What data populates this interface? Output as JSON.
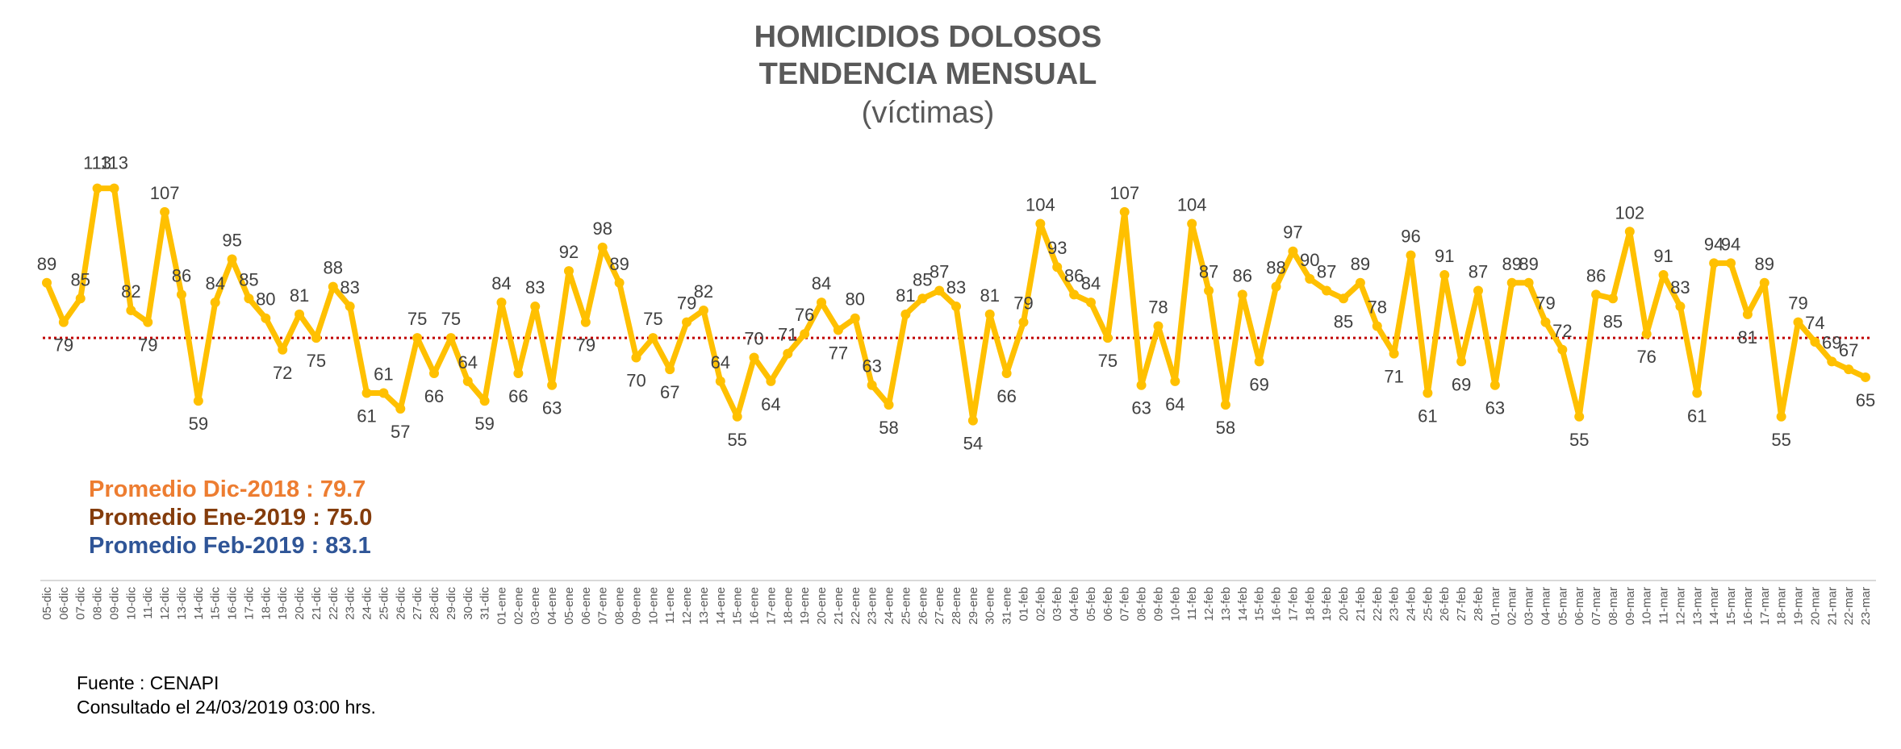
{
  "colors": {
    "line": "#FFC000",
    "average": "#C00000",
    "avg_dic": "#ED7D31",
    "avg_ene": "#843C0C",
    "avg_feb": "#2F5597",
    "title": "#595959"
  },
  "header": {
    "title_line1": "HOMICIDIOS DOLOSOS",
    "title_line2": "TENDENCIA MENSUAL",
    "subtitle": "(víctimas)"
  },
  "averages": [
    {
      "label": "Promedio Dic-2018  : 79.7",
      "color_key": "avg_dic"
    },
    {
      "label": "Promedio Ene-2019 : 75.0",
      "color_key": "avg_ene"
    },
    {
      "label": "Promedio Feb-2019 : 83.1",
      "color_key": "avg_feb"
    }
  ],
  "source": {
    "line1": "Fuente : CENAPI",
    "line2": "Consultado el 24/03/2019  03:00 hrs."
  },
  "chart_data": {
    "type": "line",
    "title": "HOMICIDIOS DOLOSOS TENDENCIA MENSUAL",
    "subtitle": "(víctimas)",
    "ylim": [
      40,
      125
    ],
    "grid": false,
    "average_line": 75,
    "categories": [
      "05-dic",
      "06-dic",
      "07-dic",
      "08-dic",
      "09-dic",
      "10-dic",
      "11-dic",
      "12-dic",
      "13-dic",
      "14-dic",
      "15-dic",
      "16-dic",
      "17-dic",
      "18-dic",
      "19-dic",
      "20-dic",
      "21-dic",
      "22-dic",
      "23-dic",
      "24-dic",
      "25-dic",
      "26-dic",
      "27-dic",
      "28-dic",
      "29-dic",
      "30-dic",
      "31-dic",
      "01-ene",
      "02-ene",
      "03-ene",
      "04-ene",
      "05-ene",
      "06-ene",
      "07-ene",
      "08-ene",
      "09-ene",
      "10-ene",
      "11-ene",
      "12-ene",
      "13-ene",
      "14-ene",
      "15-ene",
      "16-ene",
      "17-ene",
      "18-ene",
      "19-ene",
      "20-ene",
      "21-ene",
      "22-ene",
      "23-ene",
      "24-ene",
      "25-ene",
      "26-ene",
      "27-ene",
      "28-ene",
      "29-ene",
      "30-ene",
      "31-ene",
      "01-feb",
      "02-feb",
      "03-feb",
      "04-feb",
      "05-feb",
      "06-feb",
      "07-feb",
      "08-feb",
      "09-feb",
      "10-feb",
      "11-feb",
      "12-feb",
      "13-feb",
      "14-feb",
      "15-feb",
      "16-feb",
      "17-feb",
      "18-feb",
      "19-feb",
      "20-feb",
      "21-feb",
      "22-feb",
      "23-feb",
      "24-feb",
      "25-feb",
      "26-feb",
      "27-feb",
      "28-feb",
      "01-mar",
      "02-mar",
      "03-mar",
      "04-mar",
      "05-mar",
      "06-mar",
      "07-mar",
      "08-mar",
      "09-mar",
      "10-mar",
      "11-mar",
      "12-mar",
      "13-mar",
      "14-mar",
      "15-mar",
      "16-mar",
      "17-mar",
      "18-mar",
      "19-mar",
      "20-mar",
      "21-mar",
      "22-mar",
      "23-mar"
    ],
    "values": [
      89,
      79,
      85,
      113,
      113,
      82,
      79,
      107,
      86,
      59,
      84,
      95,
      85,
      80,
      72,
      81,
      75,
      88,
      83,
      61,
      61,
      57,
      75,
      66,
      75,
      64,
      59,
      84,
      66,
      83,
      63,
      92,
      79,
      98,
      89,
      70,
      75,
      67,
      79,
      82,
      64,
      55,
      70,
      64,
      71,
      76,
      84,
      77,
      80,
      63,
      58,
      81,
      85,
      87,
      83,
      54,
      81,
      66,
      79,
      104,
      93,
      86,
      84,
      75,
      107,
      63,
      78,
      64,
      104,
      87,
      58,
      86,
      69,
      88,
      97,
      90,
      87,
      85,
      89,
      78,
      71,
      96,
      61,
      91,
      69,
      87,
      63,
      89,
      89,
      79,
      72,
      55,
      86,
      85,
      102,
      76,
      91,
      83,
      61,
      94,
      94,
      81,
      89,
      55,
      79,
      74,
      69,
      67,
      65
    ]
  }
}
